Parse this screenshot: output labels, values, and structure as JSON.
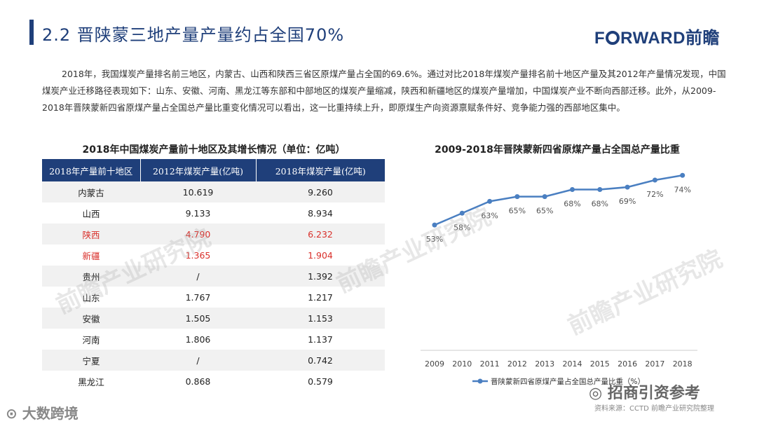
{
  "header": {
    "title": "2.2 晋陕蒙三地产量产量约占全国70%",
    "logo_pre": "F",
    "logo_post": "RWARD前瞻"
  },
  "intro": "2018年，我国煤炭产量排名前三地区，内蒙古、山西和陕西三省区原煤产量占全国的69.6%。通过对比2018年煤炭产量排名前十地区产量及其2012年产量情况发现，中国煤炭产业迁移路径表现如下：山东、安徽、河南、黑龙江等东部和中部地区的煤炭产量缩减，陕西和新疆地区的煤炭产量增加，中国煤炭产业不断向西部迁移。此外，从2009-2018年晋陕蒙新四省原煤产量占全国总产量比重变化情况可以看出，这一比重持续上升，即原煤生产向资源禀赋条件好、竞争能力强的西部地区集中。",
  "table": {
    "title": "2018年中国煤炭产量前十地区及其增长情况（单位：亿吨）",
    "headers": [
      "2018年产量前十地区",
      "2012年煤炭产量(亿吨)",
      "2018年煤炭产量(亿吨)"
    ],
    "rows": [
      [
        "内蒙古",
        "10.619",
        "9.260"
      ],
      [
        "山西",
        "9.133",
        "8.934"
      ],
      [
        "陕西",
        "4.790",
        "6.232"
      ],
      [
        "新疆",
        "1.365",
        "1.904"
      ],
      [
        "贵州",
        "/",
        "1.392"
      ],
      [
        "山东",
        "1.767",
        "1.217"
      ],
      [
        "安徽",
        "1.505",
        "1.153"
      ],
      [
        "河南",
        "1.806",
        "1.137"
      ],
      [
        "宁夏",
        "/",
        "0.742"
      ],
      [
        "黑龙江",
        "0.868",
        "0.579"
      ]
    ],
    "highlight_color": "#d9302b"
  },
  "chart_data": {
    "type": "line",
    "title": "2009-2018年晋陕蒙新四省原煤产量占全国总产量比重",
    "categories": [
      "2009",
      "2010",
      "2011",
      "2012",
      "2013",
      "2014",
      "2015",
      "2016",
      "2017",
      "2018"
    ],
    "series": [
      {
        "name": "晋陕蒙新四省原煤产量占全国总产量比重（%）",
        "values": [
          53,
          58,
          63,
          65,
          65,
          68,
          68,
          69,
          72,
          74
        ],
        "labels": [
          "53%",
          "58%",
          "63%",
          "65%",
          "65%",
          "68%",
          "68%",
          "69%",
          "72%",
          "74%"
        ],
        "color": "#4a7fc1"
      }
    ],
    "ylim": [
      0,
      80
    ],
    "grid": false,
    "legend": "bottom"
  },
  "watermarks": {
    "main": "前瞻产业研究院",
    "stamp_right": "招商引资参考",
    "stamp_left": "大数跨境"
  },
  "source": "资料来源：CCTD 前瞻产业研究院整理",
  "colors": {
    "brand": "#1f3f7a",
    "accent": "#4a7fc1",
    "highlight": "#d9302b"
  }
}
